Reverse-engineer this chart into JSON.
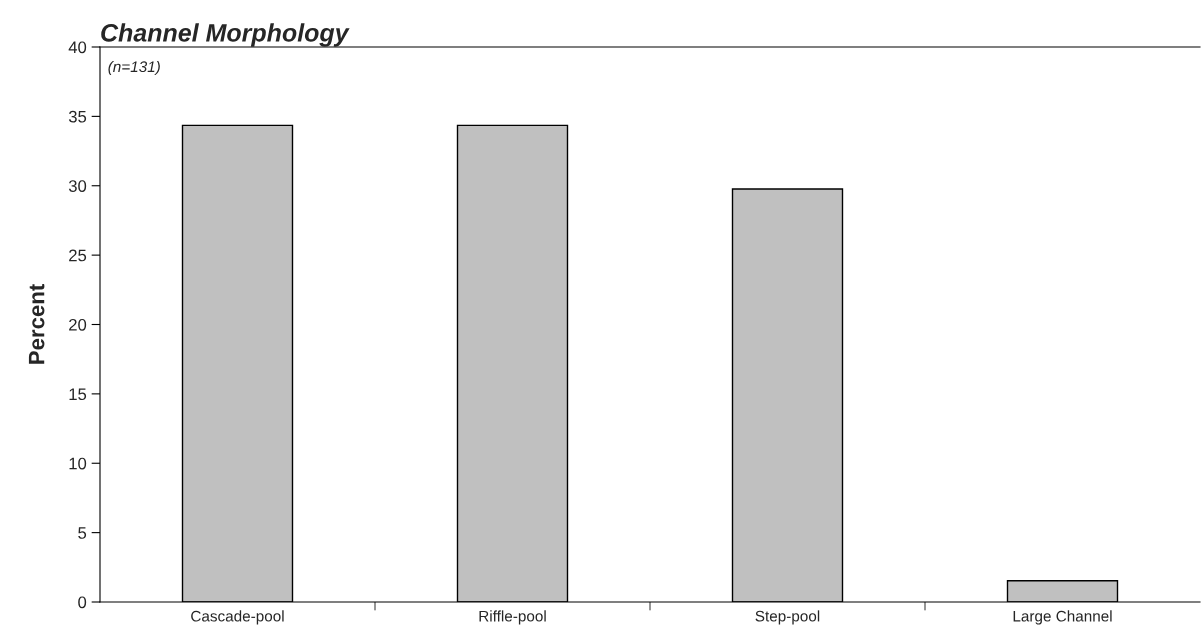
{
  "chart_data": {
    "type": "bar",
    "title": "Channel Morphology",
    "ylabel": "Percent",
    "categories": [
      "Cascade-pool",
      "Riffle-pool",
      "Step-pool",
      "Large Channel"
    ],
    "values": [
      34.35,
      34.35,
      29.77,
      1.53
    ],
    "color": "#c0c0c0",
    "ylim": [
      0,
      40
    ],
    "yticks": [
      0,
      5,
      10,
      15,
      20,
      25,
      30,
      35,
      40
    ],
    "grid": false,
    "annotations": [
      "(n=131)"
    ]
  }
}
